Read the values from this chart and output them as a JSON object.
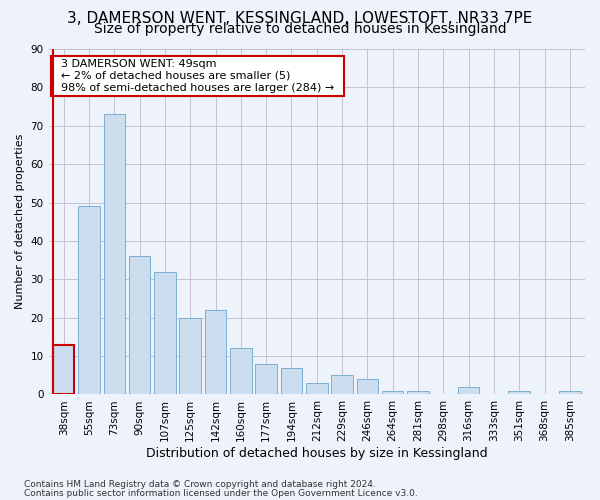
{
  "title": "3, DAMERSON WENT, KESSINGLAND, LOWESTOFT, NR33 7PE",
  "subtitle": "Size of property relative to detached houses in Kessingland",
  "xlabel": "Distribution of detached houses by size in Kessingland",
  "ylabel": "Number of detached properties",
  "categories": [
    "38sqm",
    "55sqm",
    "73sqm",
    "90sqm",
    "107sqm",
    "125sqm",
    "142sqm",
    "160sqm",
    "177sqm",
    "194sqm",
    "212sqm",
    "229sqm",
    "246sqm",
    "264sqm",
    "281sqm",
    "298sqm",
    "316sqm",
    "333sqm",
    "351sqm",
    "368sqm",
    "385sqm"
  ],
  "values": [
    13,
    49,
    73,
    36,
    32,
    20,
    22,
    12,
    8,
    7,
    3,
    5,
    4,
    1,
    1,
    0,
    2,
    0,
    1,
    0,
    1
  ],
  "bar_color": "#ccddf0",
  "bar_edge_color": "#7bafd4",
  "highlight_color": "#cc0000",
  "annotation_title": "3 DAMERSON WENT: 49sqm",
  "annotation_line1": "← 2% of detached houses are smaller (5)",
  "annotation_line2": "98% of semi-detached houses are larger (284) →",
  "annotation_box_color": "#ffffff",
  "annotation_box_edge": "#cc0000",
  "background_color": "#eef2fa",
  "axes_background": "#eef2fa",
  "ylim": [
    0,
    90
  ],
  "yticks": [
    0,
    10,
    20,
    30,
    40,
    50,
    60,
    70,
    80,
    90
  ],
  "grid_color": "#bbbbcc",
  "footer1": "Contains HM Land Registry data © Crown copyright and database right 2024.",
  "footer2": "Contains public sector information licensed under the Open Government Licence v3.0.",
  "title_fontsize": 11,
  "subtitle_fontsize": 10,
  "xlabel_fontsize": 9,
  "ylabel_fontsize": 8,
  "tick_fontsize": 7.5,
  "footer_fontsize": 6.5
}
